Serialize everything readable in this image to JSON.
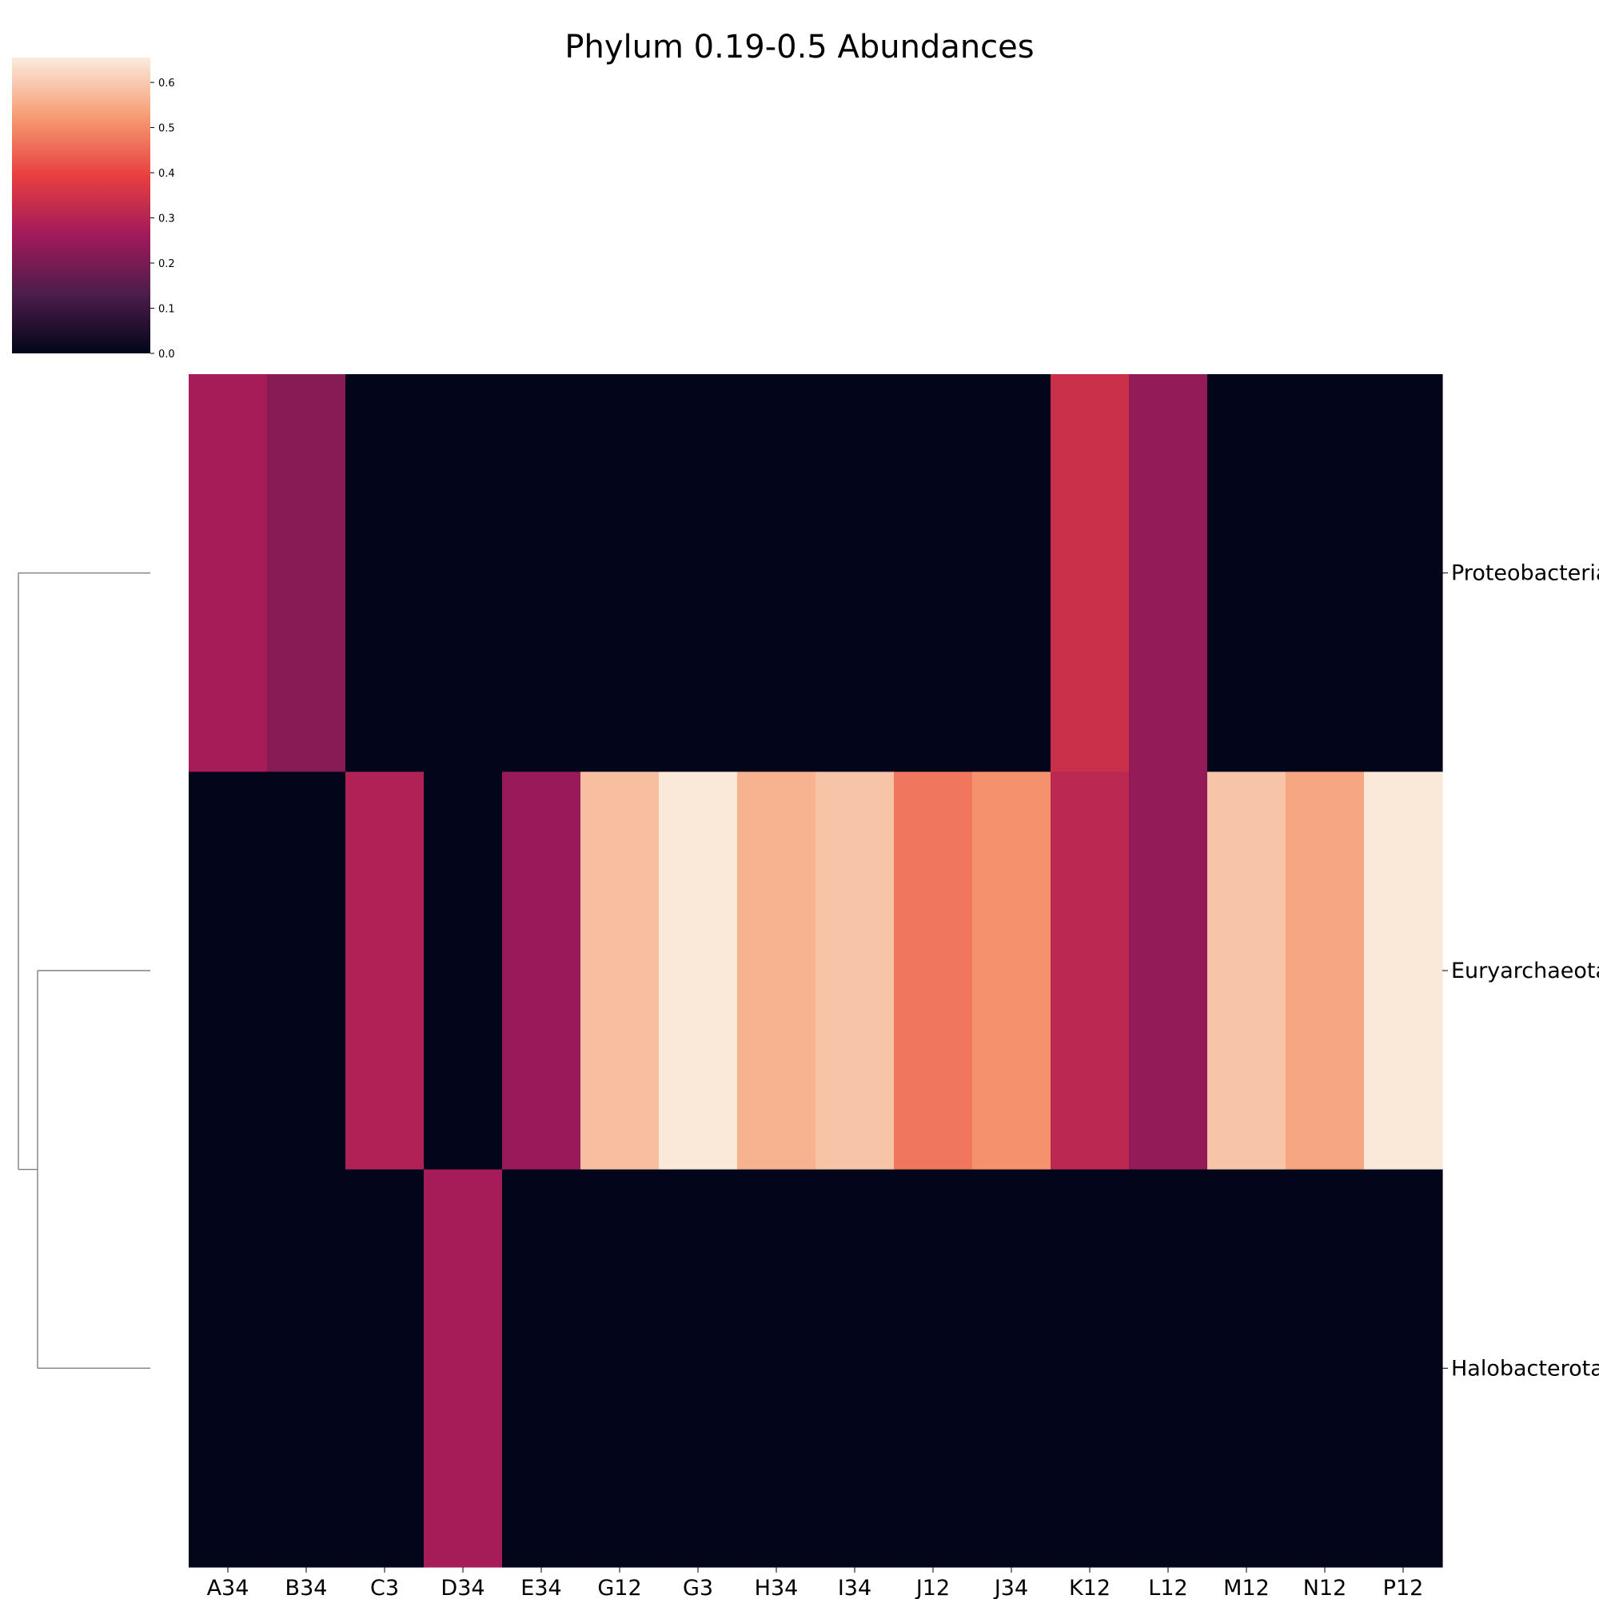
{
  "chart_data": {
    "type": "heatmap",
    "title": "Phylum 0.19-0.5 Abundances",
    "columns": [
      "A34",
      "B34",
      "C3",
      "D34",
      "E34",
      "G12",
      "G3",
      "H34",
      "I34",
      "J12",
      "J34",
      "K12",
      "L12",
      "M12",
      "N12",
      "P12"
    ],
    "rows": [
      "Proteobacteria",
      "Euryarchaeota",
      "Halobacterota"
    ],
    "values": [
      [
        0.27,
        0.22,
        0.0,
        0.0,
        0.0,
        0.0,
        0.0,
        0.0,
        0.0,
        0.0,
        0.0,
        0.34,
        0.24,
        0.0,
        0.0,
        0.0
      ],
      [
        0.0,
        0.0,
        0.29,
        0.0,
        0.25,
        0.58,
        0.65,
        0.56,
        0.59,
        0.47,
        0.51,
        0.31,
        0.24,
        0.59,
        0.54,
        0.65
      ],
      [
        0.0,
        0.0,
        0.0,
        0.27,
        0.0,
        0.0,
        0.0,
        0.0,
        0.0,
        0.0,
        0.0,
        0.0,
        0.0,
        0.0,
        0.0,
        0.0
      ]
    ],
    "colorbar": {
      "colormap": "rocket",
      "range": [
        0.0,
        0.655
      ],
      "ticks": [
        "0.0",
        "0.1",
        "0.2",
        "0.3",
        "0.4",
        "0.5",
        "0.6"
      ]
    },
    "row_dendrogram": {
      "side": "left",
      "merges": [
        [
          "Euryarchaeota",
          "Halobacterota"
        ],
        [
          "Proteobacteria",
          "Euryarchaeota+Halobacterota"
        ]
      ]
    },
    "colormap_stops": [
      "#03051a",
      "#4c1d4b",
      "#a11a5b",
      "#e83f3f",
      "#f69c73",
      "#faebdd"
    ]
  }
}
